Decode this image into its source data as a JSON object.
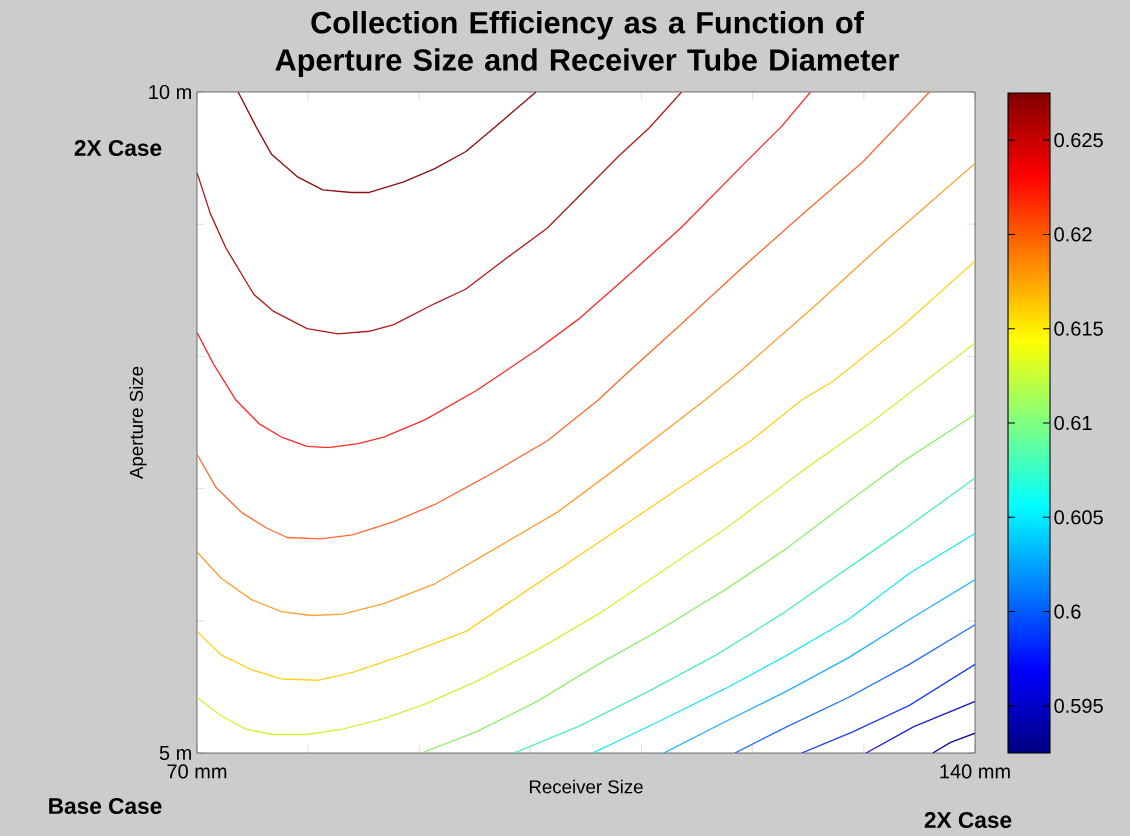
{
  "chart_data": {
    "type": "line",
    "title": "Collection Efficiency as a Function of Aperture Size and Receiver Tube Diameter",
    "xlabel": "Receiver Size",
    "ylabel": "Aperture Size",
    "annotations": [
      "2X Case",
      "Base Case",
      "2X Case"
    ],
    "xlim": [
      70,
      140
    ],
    "ylim": [
      5,
      10
    ],
    "xticks": [
      {
        "value": 70,
        "label": "70 mm"
      },
      {
        "value": 80,
        "label": null
      },
      {
        "value": 90,
        "label": null
      },
      {
        "value": 100,
        "label": null
      },
      {
        "value": 110,
        "label": null
      },
      {
        "value": 120,
        "label": null
      },
      {
        "value": 130,
        "label": null
      },
      {
        "value": 140,
        "label": "140 mm"
      }
    ],
    "yticks": [
      {
        "value": 5,
        "label": "5 m"
      },
      {
        "value": 6,
        "label": null
      },
      {
        "value": 7,
        "label": null
      },
      {
        "value": 8,
        "label": null
      },
      {
        "value": 9,
        "label": null
      },
      {
        "value": 10,
        "label": "10 m"
      }
    ],
    "clim": [
      0.5925,
      0.6275
    ],
    "cticks": [
      0.595,
      0.6,
      0.605,
      0.61,
      0.615,
      0.62,
      0.625
    ],
    "series": [
      {
        "x": [
          73.7,
          75.3,
          76.7,
          79.0,
          81.3,
          83.9,
          85.5,
          88.6,
          91.4,
          94.2,
          97.3,
          100.5
        ],
        "values": [
          10.0,
          9.74,
          9.53,
          9.36,
          9.26,
          9.24,
          9.24,
          9.32,
          9.42,
          9.55,
          9.77,
          10.0
        ],
        "color": "#8c1010"
      },
      {
        "x": [
          70,
          71.2,
          72.6,
          75.1,
          76.9,
          79.9,
          82.7,
          85.5,
          87.7,
          91.4,
          94.2,
          97.8,
          101.5,
          104.7,
          108.0,
          110.7,
          113.6
        ],
        "values": [
          9.39,
          9.08,
          8.82,
          8.47,
          8.34,
          8.21,
          8.17,
          8.19,
          8.24,
          8.4,
          8.51,
          8.74,
          8.97,
          9.24,
          9.52,
          9.73,
          10.0
        ],
        "color": "#b31b1b"
      },
      {
        "x": [
          70,
          71.5,
          73.5,
          75.6,
          77.6,
          79.9,
          81.8,
          84.5,
          86.8,
          90.5,
          95.1,
          100.6,
          104.3,
          108.9,
          113.5,
          118.9,
          122.6,
          125.2
        ],
        "values": [
          8.18,
          7.94,
          7.67,
          7.49,
          7.39,
          7.32,
          7.31,
          7.34,
          7.39,
          7.52,
          7.74,
          8.05,
          8.28,
          8.62,
          8.97,
          9.43,
          9.74,
          10.0
        ],
        "color": "#ff2a2a"
      },
      {
        "x": [
          70,
          71.7,
          74.0,
          76.3,
          78.1,
          81.1,
          84.0,
          87.7,
          91.4,
          96.0,
          101.5,
          106.1,
          108.9,
          113.5,
          118.9,
          124.4,
          129.9,
          135.9
        ],
        "values": [
          7.26,
          7.01,
          6.82,
          6.7,
          6.63,
          6.62,
          6.65,
          6.75,
          6.88,
          7.09,
          7.36,
          7.67,
          7.89,
          8.24,
          8.66,
          9.07,
          9.47,
          10.0
        ],
        "color": "#ff6a30"
      },
      {
        "x": [
          70,
          72.2,
          74.9,
          77.6,
          80.3,
          83.1,
          86.8,
          91.4,
          96.9,
          102.4,
          108.0,
          115.7,
          118.9,
          125.3,
          131.8,
          140
        ],
        "values": [
          6.52,
          6.32,
          6.16,
          6.07,
          6.04,
          6.05,
          6.13,
          6.28,
          6.55,
          6.82,
          7.17,
          7.67,
          7.89,
          8.36,
          8.86,
          9.46
        ],
        "color": "#ffa030"
      },
      {
        "x": [
          70,
          72.2,
          74.9,
          77.6,
          80.9,
          84.0,
          88.6,
          94.2,
          99.7,
          106.1,
          113.5,
          119.8,
          124.4,
          127.2,
          133.6,
          140
        ],
        "values": [
          5.92,
          5.74,
          5.63,
          5.56,
          5.55,
          5.61,
          5.74,
          5.92,
          6.23,
          6.59,
          7.01,
          7.36,
          7.67,
          7.81,
          8.24,
          8.72
        ],
        "color": "#ffd020"
      },
      {
        "x": [
          70,
          72.2,
          74.4,
          76.9,
          79.9,
          83.1,
          86.8,
          90.5,
          95.1,
          100.6,
          106.1,
          111.6,
          117.6,
          124.4,
          130.5,
          135.0,
          140
        ],
        "values": [
          5.42,
          5.28,
          5.18,
          5.14,
          5.14,
          5.18,
          5.26,
          5.37,
          5.54,
          5.78,
          6.05,
          6.36,
          6.7,
          7.13,
          7.49,
          7.78,
          8.1
        ],
        "color": "#d4f03c"
      },
      {
        "x": [
          90.2,
          95.1,
          100.6,
          106.1,
          111.6,
          117.6,
          123.1,
          128.6,
          133.6,
          140
        ],
        "values": [
          5.0,
          5.16,
          5.39,
          5.67,
          5.93,
          6.24,
          6.55,
          6.9,
          7.21,
          7.56
        ],
        "color": "#90f070"
      },
      {
        "x": [
          98.5,
          104.3,
          110.7,
          116.7,
          122.6,
          128.6,
          133.6,
          140
        ],
        "values": [
          5.0,
          5.2,
          5.47,
          5.74,
          6.05,
          6.4,
          6.69,
          7.08
        ],
        "color": "#50f0b0"
      },
      {
        "x": [
          105.6,
          111.6,
          117.6,
          123.1,
          128.6,
          134.1,
          140
        ],
        "values": [
          5.0,
          5.24,
          5.49,
          5.74,
          6.01,
          6.36,
          6.66
        ],
        "color": "#20e8f0"
      },
      {
        "x": [
          112.0,
          117.6,
          123.1,
          128.6,
          134.1,
          140
        ],
        "values": [
          5.0,
          5.24,
          5.47,
          5.72,
          6.01,
          6.31
        ],
        "color": "#20b0ff"
      },
      {
        "x": [
          118.4,
          123.1,
          128.6,
          134.1,
          140
        ],
        "values": [
          5.0,
          5.2,
          5.42,
          5.67,
          5.97
        ],
        "color": "#2070ff"
      },
      {
        "x": [
          124.4,
          129.0,
          134.1,
          140
        ],
        "values": [
          5.0,
          5.16,
          5.36,
          5.67
        ],
        "color": "#2040f0"
      },
      {
        "x": [
          130.2,
          134.5,
          140
        ],
        "values": [
          5.0,
          5.2,
          5.39
        ],
        "color": "#2020d0"
      },
      {
        "x": [
          136.2,
          137.8,
          140
        ],
        "values": [
          5.0,
          5.08,
          5.15
        ],
        "color": "#10109a"
      }
    ]
  }
}
